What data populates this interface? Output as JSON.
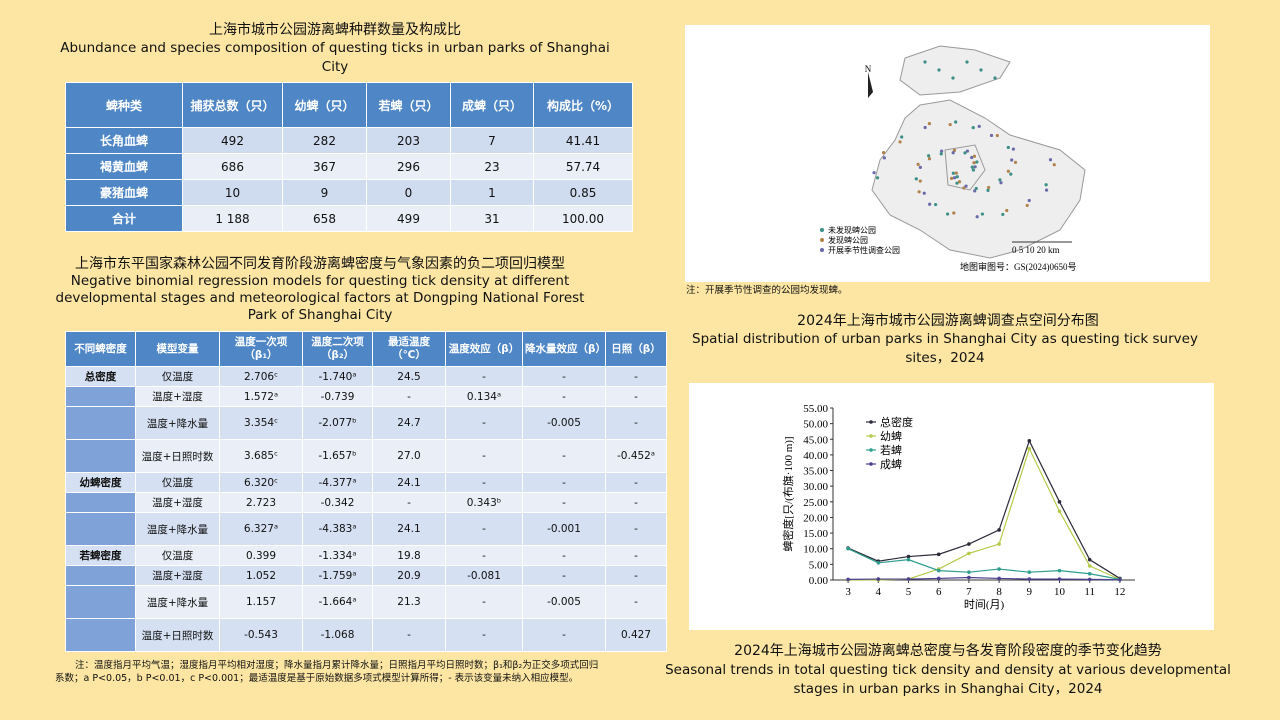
{
  "table1": {
    "title_zh": "上海市城市公园游离蜱种群数量及构成比",
    "title_en": "Abundance and species composition of questing ticks in urban parks of Shanghai City",
    "headers": [
      "蜱种类",
      "捕获总数（只）",
      "幼蜱（只）",
      "若蜱（只）",
      "成蜱（只）",
      "构成比（%）"
    ],
    "rows": [
      [
        "长角血蜱",
        "492",
        "282",
        "203",
        "7",
        "41.41"
      ],
      [
        "褐黄血蜱",
        "686",
        "367",
        "296",
        "23",
        "57.74"
      ],
      [
        "豪猪血蜱",
        "10",
        "9",
        "0",
        "1",
        "0.85"
      ],
      [
        "合计",
        "1 188",
        "658",
        "499",
        "31",
        "100.00"
      ]
    ]
  },
  "table2": {
    "title_zh": "上海市东平国家森林公园不同发育阶段游离蜱密度与气象因素的负二项回归模型",
    "title_en": "Negative binomial regression models for questing tick density at different developmental stages and meteorological factors at Dongping National Forest Park of Shanghai City",
    "headers": [
      "不同蜱密度",
      "模型变量",
      "温度一次项（β₁）",
      "温度二次项（β₂）",
      "最适温度（℃）",
      "温度效应（β）",
      "降水量效应（β）",
      "日照（β）"
    ],
    "groups": [
      {
        "name": "总密度",
        "rows": [
          [
            "仅温度",
            "2.706ᶜ",
            "-1.740ᵃ",
            "24.5",
            "-",
            "-",
            "-"
          ],
          [
            "温度+湿度",
            "1.572ᵃ",
            "-0.739",
            "-",
            "0.134ᵃ",
            "-",
            "-"
          ],
          [
            "温度+降水量",
            "3.354ᶜ",
            "-2.077ᵇ",
            "24.7",
            "-",
            "-0.005",
            "-"
          ],
          [
            "温度+日照时数",
            "3.685ᶜ",
            "-1.657ᵇ",
            "27.0",
            "-",
            "-",
            "-0.452ᵃ"
          ]
        ]
      },
      {
        "name": "幼蜱密度",
        "rows": [
          [
            "仅温度",
            "6.320ᶜ",
            "-4.377ᵃ",
            "24.1",
            "-",
            "-",
            "-"
          ],
          [
            "温度+湿度",
            "2.723",
            "-0.342",
            "-",
            "0.343ᵇ",
            "-",
            "-"
          ],
          [
            "温度+降水量",
            "6.327ᵃ",
            "-4.383ᵃ",
            "24.1",
            "-",
            "-0.001",
            "-"
          ]
        ]
      },
      {
        "name": "若蜱密度",
        "rows": [
          [
            "仅温度",
            "0.399",
            "-1.334ᵃ",
            "19.8",
            "-",
            "-",
            "-"
          ],
          [
            "温度+湿度",
            "1.052",
            "-1.759ᵃ",
            "20.9",
            "-0.081",
            "-",
            "-"
          ],
          [
            "温度+降水量",
            "1.157",
            "-1.664ᵃ",
            "21.3",
            "-",
            "-0.005",
            "-"
          ],
          [
            "温度+日照时数",
            "-0.543",
            "-1.068",
            "-",
            "-",
            "-",
            "0.427"
          ]
        ]
      }
    ],
    "note": "注：温度指月平均气温；湿度指月平均相对湿度；降水量指月累计降水量；日照指月平均日照时数；β₁和β₂为正交多项式回归系数；a P<0.05，b P<0.01，c P<0.001；最适温度是基于原始数据多项式模型计算所得；- 表示该变量未纳入相应模型。"
  },
  "map": {
    "north": "N",
    "legend": [
      "未发现蜱公园",
      "发现蜱公园",
      "开展季节性调查公园"
    ],
    "scale": "0 5 10 20 km",
    "approval": "地图审图号：GS(2024)0650号",
    "note": "注：开展季节性调查的公园均发现蜱。",
    "caption_zh": "2024年上海市城市公园游离蜱调查点空间分布图",
    "caption_en": "Spatial distribution of urban parks in Shanghai City as questing tick survey sites，2024"
  },
  "chart_data": {
    "type": "line",
    "title": "2024年上海城市公园游离蜱总密度与各发育阶段密度的季节变化趋势",
    "subtitle": "Seasonal trends in total questing tick density and density at various developmental stages in urban parks in Shanghai City，2024",
    "x_label": "时间(月)",
    "y_label": "蜱密度[只/(布旗·100 m)]",
    "x": [
      3,
      4,
      5,
      6,
      7,
      8,
      9,
      10,
      11,
      12
    ],
    "xlim": [
      2.5,
      12.5
    ],
    "xticks": [
      3,
      4,
      5,
      6,
      7,
      8,
      9,
      10,
      11,
      12
    ],
    "ylim": [
      0,
      55
    ],
    "yticks": [
      {
        "value": 0,
        "label": "0.00"
      },
      {
        "value": 5,
        "label": "5.00"
      },
      {
        "value": 10,
        "label": "10.00"
      },
      {
        "value": 15,
        "label": "15.00"
      },
      {
        "value": 20,
        "label": "20.00"
      },
      {
        "value": 25,
        "label": "25.00"
      },
      {
        "value": 30,
        "label": "30.00"
      },
      {
        "value": 35,
        "label": "35.00"
      },
      {
        "value": 40,
        "label": "40.00"
      },
      {
        "value": 45,
        "label": "45.00"
      },
      {
        "value": 50,
        "label": "50.00"
      },
      {
        "value": 55,
        "label": "55.00"
      }
    ],
    "series": [
      {
        "name": "总密度",
        "color": "#2b2b3a",
        "values": [
          10.2,
          6.0,
          7.5,
          8.2,
          11.5,
          16.0,
          44.5,
          25.0,
          6.5,
          0.5
        ]
      },
      {
        "name": "幼蜱",
        "color": "#b5c94a",
        "values": [
          0,
          0,
          0.3,
          3.5,
          8.5,
          11.5,
          42.0,
          22.0,
          4.5,
          0.2
        ]
      },
      {
        "name": "若蜱",
        "color": "#2e9e8e",
        "values": [
          10.0,
          5.5,
          6.5,
          3.0,
          2.5,
          3.5,
          2.5,
          3.0,
          2.0,
          0.2
        ]
      },
      {
        "name": "成蜱",
        "color": "#4b3f8f",
        "values": [
          0.2,
          0.3,
          0.3,
          0.5,
          0.8,
          0.5,
          0.3,
          0.3,
          0.2,
          0.1
        ]
      }
    ]
  }
}
